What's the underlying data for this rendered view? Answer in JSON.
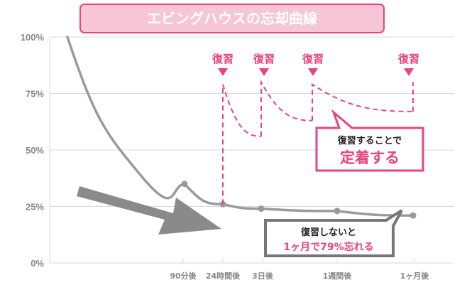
{
  "chart_data": {
    "type": "line",
    "title": "エビングハウスの忘却曲線",
    "y_ticks": [
      "0%",
      "25%",
      "50%",
      "75%",
      "100%"
    ],
    "ylim": [
      0,
      100
    ],
    "x_ticks": [
      {
        "key": "90min",
        "label": "90分後"
      },
      {
        "key": "24h",
        "label": "24時間後"
      },
      {
        "key": "3d",
        "label": "3日後"
      },
      {
        "key": "1w",
        "label": "1週間後"
      },
      {
        "key": "1m",
        "label": "1ヶ月後"
      }
    ],
    "series": [
      {
        "values": [
          {
            "x": "0",
            "y": 100
          },
          {
            "x": "90min",
            "y": 35
          },
          {
            "x": "24h",
            "y": 26
          },
          {
            "x": "3d",
            "y": 24
          },
          {
            "x": "1w",
            "y": 23
          },
          {
            "x": "1m",
            "y": 21
          }
        ],
        "color": "#9a9a9a",
        "style": "solid"
      },
      {
        "segments": [
          [
            {
              "x": "24h",
              "y": 26
            },
            {
              "x": "24h",
              "y": 79
            },
            {
              "x": "3d",
              "y": 56
            }
          ],
          [
            {
              "x": "3d",
              "y": 56
            },
            {
              "x": "3d",
              "y": 80
            },
            {
              "x": "4d",
              "y": 63
            }
          ],
          [
            {
              "x": "4d",
              "y": 63
            },
            {
              "x": "4d",
              "y": 79
            },
            {
              "x": "1m",
              "y": 67
            }
          ],
          [
            {
              "x": "1m",
              "y": 67
            },
            {
              "x": "1m",
              "y": 80
            }
          ]
        ],
        "color": "#e8457c",
        "style": "dashed"
      }
    ],
    "annotations": {
      "review_label": "復習",
      "review_count": 4,
      "callout_review": {
        "line1": "復習することで",
        "line2": "定着する"
      },
      "callout_no_review": {
        "line1": "復習しないと",
        "line2": "1ヶ月で79%忘れる"
      }
    },
    "colors": {
      "accent": "#e8457c",
      "curve": "#9a9a9a",
      "grid": "#d9d9d9",
      "title_bg": "#f6c6d6",
      "title_border": "#e8457c",
      "arrow": "#8a8a8a",
      "callout_border_gray": "#777777"
    }
  }
}
